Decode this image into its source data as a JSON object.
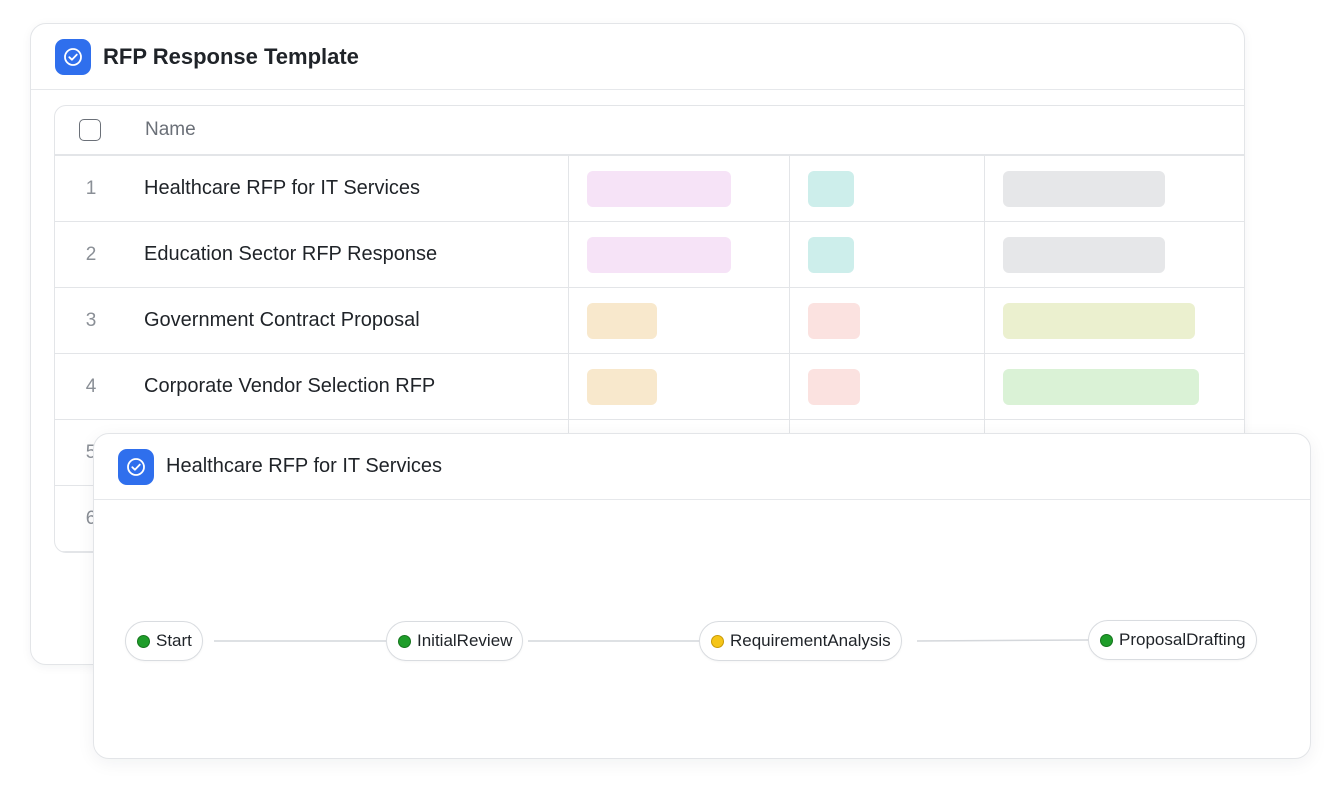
{
  "template": {
    "title": "RFP Response Template",
    "header_name": "Name",
    "rows": [
      {
        "num": "1",
        "name": "Healthcare RFP for IT Services"
      },
      {
        "num": "2",
        "name": "Education Sector RFP Response"
      },
      {
        "num": "3",
        "name": "Government Contract Proposal"
      },
      {
        "num": "4",
        "name": "Corporate Vendor Selection RFP"
      },
      {
        "num": "5",
        "name": ""
      },
      {
        "num": "6",
        "name": ""
      }
    ]
  },
  "workflow": {
    "title": "Healthcare RFP for IT Services",
    "nodes": [
      {
        "label": "Start",
        "status": "complete"
      },
      {
        "label": "InitialReview",
        "status": "complete"
      },
      {
        "label": "RequirementAnalysis",
        "status": "in-progress"
      },
      {
        "label": "ProposalDrafting",
        "status": "complete"
      }
    ]
  },
  "colors": {
    "brand": "#2f6fed",
    "status_complete": "#1f9d2a",
    "status_in_progress": "#f5c518",
    "tag_pink": "#f6e3f7",
    "tag_teal": "#cdeeeb",
    "tag_gray": "#e6e7e9",
    "tag_peach": "#f8e8cc",
    "tag_rose": "#fbe2e0",
    "tag_lime": "#ebf0cf",
    "tag_green": "#daf2d6"
  }
}
